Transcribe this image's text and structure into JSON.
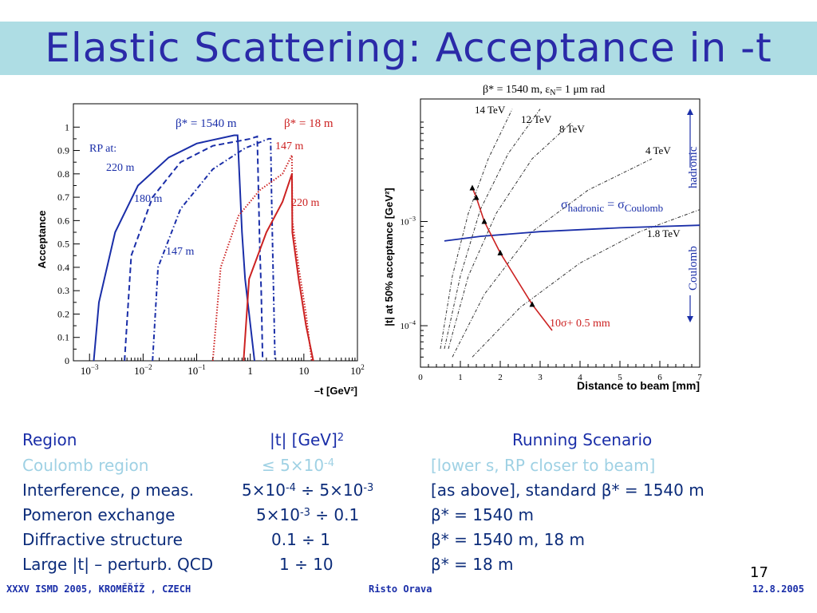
{
  "slide": {
    "title": "Elastic Scattering: Acceptance in -t",
    "page_number": "17",
    "footer_left": "XXXV ISMD 2005, KROMĚŘÍŽ , CZECH",
    "footer_center": "Risto Orava",
    "footer_right": "12.8.2005"
  },
  "table": {
    "header": {
      "region": "Region",
      "t_prefix": "|t| [GeV]",
      "t_sup": "2",
      "scenario": "Running Scenario"
    },
    "rows": [
      {
        "region": "Coulomb region",
        "t": "≤ 5×10",
        "t_sup": "-4",
        "t_tail": "",
        "t_sup2": "",
        "scenario": "[lower s, RP closer to beam]",
        "style": "light"
      },
      {
        "region": "Interference, ρ meas.",
        "t": "5×10",
        "t_sup": "-4",
        "t_tail": " ÷ 5×10",
        "t_sup2": "-3",
        "scenario": "[as above], standard β* = 1540 m",
        "style": "dark"
      },
      {
        "region": "Pomeron exchange",
        "t": "5×10",
        "t_sup": "-3",
        "t_tail": " ÷ 0.1",
        "t_sup2": "",
        "scenario": "β* = 1540 m",
        "style": "dark"
      },
      {
        "region": "Diffractive structure",
        "t": "0.1 ÷ 1",
        "t_sup": "",
        "t_tail": "",
        "t_sup2": "",
        "scenario": "β* = 1540 m, 18 m",
        "style": "dark"
      },
      {
        "region": "Large |t| – perturb. QCD",
        "t": "1 ÷ 10",
        "t_sup": "",
        "t_tail": "",
        "t_sup2": "",
        "scenario": "β* = 18 m",
        "style": "dark"
      }
    ]
  },
  "colors": {
    "title": "#2a2aa8",
    "band": "#aedde4",
    "blue": "#1a2ea8",
    "red": "#cc2222"
  },
  "chart_data": [
    {
      "type": "line",
      "ylabel": "Acceptance",
      "xlabel": "–t [GeV²]",
      "xscale": "log",
      "xlim": [
        0.0005,
        100
      ],
      "ylim": [
        0,
        1.1
      ],
      "yticks": [
        "0",
        "0.1",
        "0.2",
        "0.3",
        "0.4",
        "0.5",
        "0.6",
        "0.7",
        "0.8",
        "0.9",
        "1"
      ],
      "xticks": [
        {
          "base": "10",
          "exp": "−3",
          "v": 0.001
        },
        {
          "base": "10",
          "exp": "−2",
          "v": 0.01
        },
        {
          "base": "10",
          "exp": "−1",
          "v": 0.1
        },
        {
          "base": "1",
          "exp": "",
          "v": 1
        },
        {
          "base": "10",
          "exp": "",
          "v": 10
        },
        {
          "base": "10",
          "exp": "2",
          "v": 100
        }
      ],
      "annotations": {
        "beta_blue": "β* = 1540 m",
        "beta_red": "β* = 18 m",
        "rp_at": "RP at:",
        "l220": "220 m",
        "l180": "180 m",
        "l147": "147 m",
        "r147": "147 m",
        "r220": "220 m"
      },
      "series": [
        {
          "color": "#1a2ea8",
          "dash": "solid",
          "points": [
            [
              0.0012,
              0
            ],
            [
              0.0015,
              0.25
            ],
            [
              0.003,
              0.55
            ],
            [
              0.008,
              0.75
            ],
            [
              0.03,
              0.87
            ],
            [
              0.1,
              0.93
            ],
            [
              0.5,
              0.965
            ],
            [
              0.58,
              0.965
            ],
            [
              0.7,
              0.55
            ],
            [
              0.8,
              0.35
            ],
            [
              1.2,
              0
            ]
          ]
        },
        {
          "color": "#1a2ea8",
          "dash": "dashed",
          "points": [
            [
              0.0045,
              0
            ],
            [
              0.006,
              0.45
            ],
            [
              0.015,
              0.7
            ],
            [
              0.05,
              0.85
            ],
            [
              0.2,
              0.92
            ],
            [
              1,
              0.95
            ],
            [
              1.35,
              0.96
            ],
            [
              1.5,
              0.5
            ],
            [
              1.6,
              0.3
            ],
            [
              1.7,
              0
            ]
          ]
        },
        {
          "color": "#1a2ea8",
          "dash": "dotdash",
          "points": [
            [
              0.015,
              0
            ],
            [
              0.019,
              0.4
            ],
            [
              0.05,
              0.65
            ],
            [
              0.2,
              0.82
            ],
            [
              0.8,
              0.91
            ],
            [
              2.2,
              0.95
            ],
            [
              2.4,
              0.95
            ],
            [
              2.5,
              0.7
            ],
            [
              2.6,
              0.5
            ],
            [
              2.9,
              0
            ]
          ]
        },
        {
          "color": "#cc2222",
          "dash": "dotted",
          "points": [
            [
              0.2,
              0
            ],
            [
              0.28,
              0.4
            ],
            [
              0.6,
              0.62
            ],
            [
              1.5,
              0.73
            ],
            [
              4,
              0.8
            ],
            [
              6,
              0.88
            ],
            [
              6.1,
              0.6
            ],
            [
              8,
              0.4
            ],
            [
              11,
              0.2
            ],
            [
              14,
              0
            ]
          ]
        },
        {
          "color": "#cc2222",
          "dash": "solid",
          "points": [
            [
              0.75,
              0
            ],
            [
              0.95,
              0.35
            ],
            [
              2,
              0.55
            ],
            [
              4,
              0.68
            ],
            [
              6,
              0.8
            ],
            [
              6.1,
              0.55
            ],
            [
              8,
              0.35
            ],
            [
              11,
              0.15
            ],
            [
              15,
              0
            ]
          ]
        }
      ]
    },
    {
      "type": "line",
      "title": "β* = 1540 m,  ε",
      "title_sub": "N",
      "title_tail": "= 1 μm rad",
      "ylabel": "|t| at 50% acceptance [GeV²]",
      "xlabel": "Distance to beam [mm]",
      "yscale": "log",
      "xlim": [
        0,
        7
      ],
      "ylim": [
        4e-05,
        0.015
      ],
      "xticks": [
        "0",
        "1",
        "2",
        "3",
        "4",
        "5",
        "6",
        "7"
      ],
      "yticks": [
        {
          "base": "10",
          "exp": "−4",
          "v": 0.0001
        },
        {
          "base": "10",
          "exp": "−3",
          "v": 0.001
        }
      ],
      "annotations": {
        "e14": "14 TeV",
        "e12": "12 TeV",
        "e8": "8 TeV",
        "e4": "4 TeV",
        "e18": "1.8 TeV",
        "sigma": "σ",
        "sigma_sub1": "hadronic",
        "sigma_eq": " = σ",
        "sigma_sub2": "Coulomb",
        "hadronic": "hadronic",
        "coulomb": "Coulomb",
        "cut": "10σ+ 0.5 mm"
      },
      "energy_curves": [
        {
          "points": [
            [
              0.5,
              6e-05
            ],
            [
              0.8,
              0.0003
            ],
            [
              1.2,
              0.0012
            ],
            [
              1.7,
              0.004
            ],
            [
              2.3,
              0.012
            ]
          ]
        },
        {
          "points": [
            [
              0.6,
              6e-05
            ],
            [
              1.0,
              0.0003
            ],
            [
              1.5,
              0.0013
            ],
            [
              2.2,
              0.0045
            ],
            [
              3.0,
              0.012
            ]
          ]
        },
        {
          "points": [
            [
              0.7,
              6e-05
            ],
            [
              1.2,
              0.0003
            ],
            [
              1.9,
              0.0012
            ],
            [
              2.8,
              0.004
            ],
            [
              3.8,
              0.009
            ]
          ]
        },
        {
          "points": [
            [
              0.8,
              5e-05
            ],
            [
              1.6,
              0.0002
            ],
            [
              2.8,
              0.0008
            ],
            [
              4.2,
              0.002
            ],
            [
              5.8,
              0.004
            ]
          ]
        },
        {
          "points": [
            [
              1.3,
              5e-05
            ],
            [
              2.5,
              0.00015
            ],
            [
              4.0,
              0.0004
            ],
            [
              5.5,
              0.0008
            ],
            [
              7,
              0.0013
            ]
          ]
        }
      ],
      "sigma_line": {
        "points": [
          [
            0.6,
            0.00065
          ],
          [
            1.5,
            0.00072
          ],
          [
            3,
            0.0008
          ],
          [
            5,
            0.00087
          ],
          [
            7,
            0.00092
          ]
        ]
      },
      "cut_line": {
        "points": [
          [
            1.3,
            0.0021
          ],
          [
            1.4,
            0.0017
          ],
          [
            1.6,
            0.001
          ],
          [
            2.0,
            0.0005
          ],
          [
            2.8,
            0.00016
          ],
          [
            3.3,
            9e-05
          ]
        ]
      },
      "cut_markers": [
        [
          1.3,
          0.0021
        ],
        [
          1.4,
          0.0017
        ],
        [
          1.6,
          0.001
        ],
        [
          2.0,
          0.0005
        ],
        [
          2.8,
          0.00016
        ]
      ]
    }
  ]
}
